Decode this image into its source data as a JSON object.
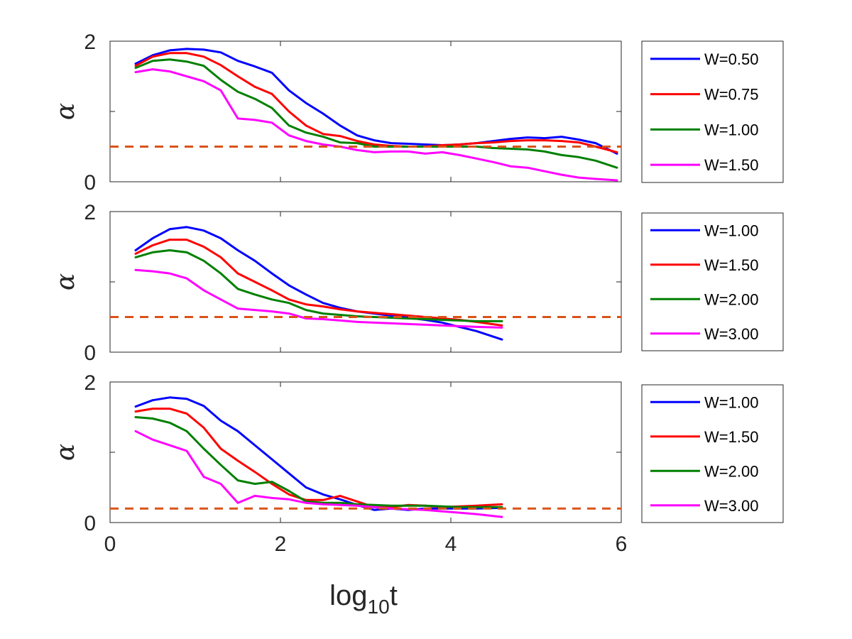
{
  "chart_data": [
    {
      "type": "line",
      "panel": "top",
      "title": "",
      "xlabel": "",
      "ylabel": "α",
      "xlim": [
        0,
        6
      ],
      "ylim": [
        0,
        2
      ],
      "xticks": [
        0,
        2,
        4,
        6
      ],
      "yticks": [
        0,
        2
      ],
      "show_xtick_labels": false,
      "reference_line": {
        "y": 0.5,
        "color": "#D95319",
        "style": "dashed"
      },
      "legend_position": "outside-right",
      "series": [
        {
          "name": "W=0.50",
          "color": "#0000FF",
          "x": [
            0.3,
            0.5,
            0.7,
            0.9,
            1.1,
            1.3,
            1.5,
            1.7,
            1.9,
            2.1,
            2.3,
            2.5,
            2.7,
            2.9,
            3.1,
            3.3,
            3.5,
            3.7,
            3.9,
            4.1,
            4.3,
            4.5,
            4.7,
            4.9,
            5.1,
            5.3,
            5.5,
            5.7,
            5.95
          ],
          "y": [
            1.68,
            1.8,
            1.87,
            1.89,
            1.88,
            1.84,
            1.72,
            1.64,
            1.55,
            1.3,
            1.12,
            0.97,
            0.8,
            0.66,
            0.59,
            0.55,
            0.54,
            0.53,
            0.52,
            0.53,
            0.55,
            0.58,
            0.61,
            0.63,
            0.62,
            0.64,
            0.6,
            0.55,
            0.4
          ]
        },
        {
          "name": "W=0.75",
          "color": "#FF0000",
          "x": [
            0.3,
            0.5,
            0.7,
            0.9,
            1.1,
            1.3,
            1.5,
            1.7,
            1.9,
            2.1,
            2.3,
            2.5,
            2.7,
            2.9,
            3.1,
            3.3,
            3.5,
            3.7,
            3.9,
            4.1,
            4.3,
            4.5,
            4.7,
            4.9,
            5.1,
            5.3,
            5.5,
            5.7,
            5.95
          ],
          "y": [
            1.65,
            1.78,
            1.83,
            1.83,
            1.78,
            1.66,
            1.5,
            1.35,
            1.25,
            1.0,
            0.8,
            0.68,
            0.65,
            0.58,
            0.53,
            0.51,
            0.5,
            0.5,
            0.52,
            0.53,
            0.55,
            0.56,
            0.58,
            0.59,
            0.59,
            0.58,
            0.56,
            0.5,
            0.42
          ]
        },
        {
          "name": "W=1.00",
          "color": "#008000",
          "x": [
            0.3,
            0.5,
            0.7,
            0.9,
            1.1,
            1.3,
            1.5,
            1.7,
            1.9,
            2.1,
            2.3,
            2.5,
            2.7,
            2.9,
            3.1,
            3.3,
            3.5,
            3.7,
            3.9,
            4.1,
            4.3,
            4.5,
            4.7,
            4.9,
            5.1,
            5.3,
            5.5,
            5.7,
            5.95
          ],
          "y": [
            1.62,
            1.72,
            1.74,
            1.71,
            1.65,
            1.45,
            1.28,
            1.18,
            1.05,
            0.8,
            0.7,
            0.64,
            0.56,
            0.55,
            0.5,
            0.5,
            0.5,
            0.5,
            0.5,
            0.5,
            0.5,
            0.48,
            0.47,
            0.46,
            0.43,
            0.38,
            0.35,
            0.3,
            0.2
          ]
        },
        {
          "name": "W=1.50",
          "color": "#FF00FF",
          "x": [
            0.3,
            0.5,
            0.7,
            0.9,
            1.1,
            1.3,
            1.5,
            1.7,
            1.9,
            2.1,
            2.3,
            2.5,
            2.7,
            2.9,
            3.1,
            3.3,
            3.5,
            3.7,
            3.9,
            4.1,
            4.3,
            4.5,
            4.7,
            4.9,
            5.1,
            5.3,
            5.5,
            5.7,
            5.95
          ],
          "y": [
            1.56,
            1.6,
            1.57,
            1.5,
            1.43,
            1.3,
            0.9,
            0.88,
            0.84,
            0.66,
            0.58,
            0.53,
            0.5,
            0.45,
            0.42,
            0.43,
            0.43,
            0.4,
            0.42,
            0.38,
            0.33,
            0.28,
            0.22,
            0.2,
            0.15,
            0.1,
            0.06,
            0.04,
            0.02
          ]
        }
      ]
    },
    {
      "type": "line",
      "panel": "middle",
      "title": "",
      "xlabel": "",
      "ylabel": "α",
      "xlim": [
        0,
        6
      ],
      "ylim": [
        0,
        2
      ],
      "xticks": [
        0,
        2,
        4,
        6
      ],
      "yticks": [
        0,
        2
      ],
      "show_xtick_labels": false,
      "reference_line": {
        "y": 0.5,
        "color": "#D95319",
        "style": "dashed"
      },
      "legend_position": "outside-right",
      "series": [
        {
          "name": "W=1.00",
          "color": "#0000FF",
          "x": [
            0.3,
            0.5,
            0.7,
            0.9,
            1.1,
            1.3,
            1.5,
            1.7,
            1.9,
            2.1,
            2.3,
            2.5,
            2.7,
            2.9,
            3.1,
            3.3,
            3.5,
            3.7,
            3.9,
            4.1,
            4.3,
            4.6
          ],
          "y": [
            1.45,
            1.62,
            1.75,
            1.78,
            1.73,
            1.62,
            1.45,
            1.3,
            1.12,
            0.95,
            0.82,
            0.7,
            0.63,
            0.58,
            0.55,
            0.52,
            0.49,
            0.46,
            0.42,
            0.36,
            0.3,
            0.18
          ]
        },
        {
          "name": "W=1.50",
          "color": "#FF0000",
          "x": [
            0.3,
            0.5,
            0.7,
            0.9,
            1.1,
            1.3,
            1.5,
            1.7,
            1.9,
            2.1,
            2.3,
            2.5,
            2.7,
            2.9,
            3.1,
            3.3,
            3.5,
            3.7,
            3.9,
            4.1,
            4.3,
            4.6
          ],
          "y": [
            1.4,
            1.52,
            1.6,
            1.6,
            1.5,
            1.35,
            1.12,
            1.0,
            0.88,
            0.75,
            0.68,
            0.65,
            0.61,
            0.58,
            0.56,
            0.54,
            0.52,
            0.5,
            0.48,
            0.46,
            0.43,
            0.38
          ]
        },
        {
          "name": "W=2.00",
          "color": "#008000",
          "x": [
            0.3,
            0.5,
            0.7,
            0.9,
            1.1,
            1.3,
            1.5,
            1.7,
            1.9,
            2.1,
            2.3,
            2.5,
            2.7,
            2.9,
            3.1,
            3.3,
            3.5,
            3.7,
            3.9,
            4.1,
            4.3,
            4.6
          ],
          "y": [
            1.35,
            1.42,
            1.45,
            1.42,
            1.3,
            1.12,
            0.9,
            0.82,
            0.75,
            0.7,
            0.6,
            0.55,
            0.53,
            0.51,
            0.5,
            0.49,
            0.48,
            0.47,
            0.46,
            0.45,
            0.44,
            0.44
          ]
        },
        {
          "name": "W=3.00",
          "color": "#FF00FF",
          "x": [
            0.3,
            0.5,
            0.7,
            0.9,
            1.1,
            1.3,
            1.5,
            1.7,
            1.9,
            2.1,
            2.3,
            2.5,
            2.7,
            2.9,
            3.1,
            3.3,
            3.5,
            3.7,
            3.9,
            4.1,
            4.3,
            4.6
          ],
          "y": [
            1.17,
            1.15,
            1.12,
            1.05,
            0.88,
            0.75,
            0.62,
            0.6,
            0.58,
            0.55,
            0.48,
            0.47,
            0.45,
            0.43,
            0.42,
            0.41,
            0.4,
            0.39,
            0.38,
            0.37,
            0.36,
            0.35
          ]
        }
      ]
    },
    {
      "type": "line",
      "panel": "bottom",
      "title": "",
      "xlabel": "log10t",
      "ylabel": "α",
      "xlim": [
        0,
        6
      ],
      "ylim": [
        0,
        2
      ],
      "xticks": [
        0,
        2,
        4,
        6
      ],
      "yticks": [
        0,
        2
      ],
      "show_xtick_labels": true,
      "reference_line": {
        "y": 0.2,
        "color": "#D95319",
        "style": "dashed"
      },
      "legend_position": "outside-right",
      "series": [
        {
          "name": "W=1.00",
          "color": "#0000FF",
          "x": [
            0.3,
            0.5,
            0.7,
            0.9,
            1.1,
            1.3,
            1.5,
            1.7,
            1.9,
            2.1,
            2.3,
            2.5,
            2.7,
            2.9,
            3.1,
            3.3,
            3.5,
            3.7,
            3.9,
            4.1,
            4.3,
            4.6
          ],
          "y": [
            1.65,
            1.74,
            1.78,
            1.76,
            1.66,
            1.45,
            1.3,
            1.1,
            0.9,
            0.7,
            0.5,
            0.4,
            0.33,
            0.25,
            0.18,
            0.2,
            0.18,
            0.2,
            0.2,
            0.2,
            0.2,
            0.21
          ]
        },
        {
          "name": "W=1.50",
          "color": "#FF0000",
          "x": [
            0.3,
            0.5,
            0.7,
            0.9,
            1.1,
            1.3,
            1.5,
            1.7,
            1.9,
            2.1,
            2.3,
            2.5,
            2.7,
            2.9,
            3.1,
            3.3,
            3.5,
            3.7,
            3.9,
            4.1,
            4.3,
            4.6
          ],
          "y": [
            1.58,
            1.62,
            1.62,
            1.55,
            1.35,
            1.05,
            0.88,
            0.72,
            0.55,
            0.4,
            0.32,
            0.32,
            0.38,
            0.3,
            0.22,
            0.22,
            0.25,
            0.24,
            0.22,
            0.23,
            0.24,
            0.26
          ]
        },
        {
          "name": "W=2.00",
          "color": "#008000",
          "x": [
            0.3,
            0.5,
            0.7,
            0.9,
            1.1,
            1.3,
            1.5,
            1.7,
            1.9,
            2.1,
            2.3,
            2.5,
            2.7,
            2.9,
            3.1,
            3.3,
            3.5,
            3.7,
            3.9,
            4.1,
            4.3,
            4.6
          ],
          "y": [
            1.5,
            1.48,
            1.42,
            1.3,
            1.05,
            0.82,
            0.6,
            0.55,
            0.58,
            0.45,
            0.3,
            0.28,
            0.28,
            0.26,
            0.25,
            0.24,
            0.24,
            0.24,
            0.23,
            0.22,
            0.22,
            0.22
          ]
        },
        {
          "name": "W=3.00",
          "color": "#FF00FF",
          "x": [
            0.3,
            0.5,
            0.7,
            0.9,
            1.1,
            1.3,
            1.5,
            1.7,
            1.9,
            2.1,
            2.3,
            2.5,
            2.7,
            2.9,
            3.1,
            3.3,
            3.5,
            3.7,
            3.9,
            4.1,
            4.3,
            4.6
          ],
          "y": [
            1.3,
            1.18,
            1.1,
            1.02,
            0.65,
            0.55,
            0.28,
            0.38,
            0.35,
            0.33,
            0.28,
            0.26,
            0.25,
            0.24,
            0.22,
            0.2,
            0.19,
            0.18,
            0.16,
            0.14,
            0.12,
            0.08
          ]
        }
      ]
    }
  ]
}
